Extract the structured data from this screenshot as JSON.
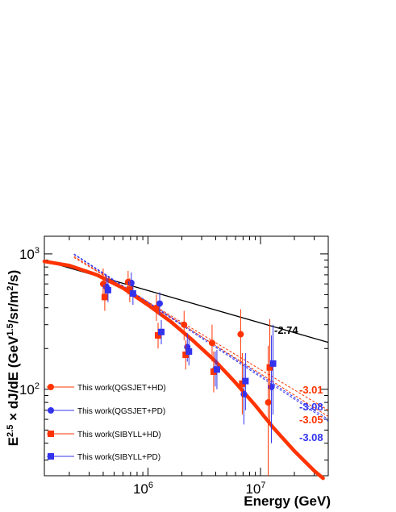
{
  "chart_data": {
    "type": "scatter",
    "title": "",
    "xlabel": "Energy (GeV)",
    "ylabel": "E^{2.5} × dJ/dE (GeV^{1.5}/sr/m^{2}/s)",
    "xscale": "log",
    "yscale": "log",
    "xlim": [
      120000,
      40000000
    ],
    "ylim": [
      23,
      1350
    ],
    "x_tick_labels": [
      "10^6",
      "10^7"
    ],
    "y_tick_labels": [
      "10^2",
      "10^3"
    ],
    "grid": false,
    "legend_placement": "lower-left",
    "series": [
      {
        "name": "This work(QGSJET+HD)",
        "color": "#ff3300",
        "marker": "circle",
        "points": [
          {
            "x": 420000,
            "y": 600,
            "err": [
              470,
              780
            ]
          },
          {
            "x": 700000,
            "y": 620,
            "err": [
              500,
              750
            ]
          },
          {
            "x": 1250000,
            "y": 400,
            "err": [
              320,
              500
            ]
          },
          {
            "x": 2200000,
            "y": 300,
            "err": [
              230,
              380
            ]
          },
          {
            "x": 3900000,
            "y": 220,
            "err": [
              160,
              300
            ]
          },
          {
            "x": 7000000,
            "y": 255,
            "err": [
              160,
              390
            ]
          },
          {
            "x": 12300000,
            "y": 80,
            "err": [
              23,
              210
            ]
          }
        ]
      },
      {
        "name": "This work(QGSJET+PD)",
        "color": "#3333ee",
        "marker": "circle",
        "points": [
          {
            "x": 420000,
            "y": 570,
            "err": [
              460,
              700
            ]
          },
          {
            "x": 700000,
            "y": 610,
            "err": [
              510,
              730
            ]
          },
          {
            "x": 1250000,
            "y": 430,
            "err": [
              350,
              520
            ]
          },
          {
            "x": 2200000,
            "y": 205,
            "err": [
              160,
              260
            ]
          },
          {
            "x": 3900000,
            "y": 140,
            "err": [
              105,
              190
            ]
          },
          {
            "x": 7000000,
            "y": 92,
            "err": [
              55,
              150
            ]
          },
          {
            "x": 12300000,
            "y": 104,
            "err": [
              40,
              250
            ]
          }
        ]
      },
      {
        "name": "This work(SIBYLL+HD)",
        "color": "#ff3300",
        "marker": "square",
        "points": [
          {
            "x": 420000,
            "y": 480,
            "err": [
              380,
              600
            ]
          },
          {
            "x": 700000,
            "y": 545,
            "err": [
              440,
              660
            ]
          },
          {
            "x": 1250000,
            "y": 250,
            "err": [
              200,
              310
            ]
          },
          {
            "x": 2200000,
            "y": 180,
            "err": [
              140,
              230
            ]
          },
          {
            "x": 3900000,
            "y": 135,
            "err": [
              95,
              190
            ]
          },
          {
            "x": 7000000,
            "y": 110,
            "err": [
              65,
              185
            ]
          },
          {
            "x": 12300000,
            "y": 145,
            "err": [
              55,
              330
            ]
          }
        ]
      },
      {
        "name": "This work(SIBYLL+PD)",
        "color": "#3333ee",
        "marker": "square",
        "points": [
          {
            "x": 420000,
            "y": 540,
            "err": [
              440,
              660
            ]
          },
          {
            "x": 700000,
            "y": 510,
            "err": [
              420,
              620
            ]
          },
          {
            "x": 1250000,
            "y": 265,
            "err": [
              215,
              325
            ]
          },
          {
            "x": 2200000,
            "y": 190,
            "err": [
              150,
              240
            ]
          },
          {
            "x": 3900000,
            "y": 140,
            "err": [
              100,
              195
            ]
          },
          {
            "x": 7000000,
            "y": 115,
            "err": [
              70,
              185
            ]
          },
          {
            "x": 12300000,
            "y": 155,
            "err": [
              65,
              300
            ]
          }
        ]
      }
    ],
    "fit_lines": [
      {
        "label": "-2.74",
        "color": "#000000",
        "dashed": false,
        "x": [
          120000,
          40000000
        ],
        "y": [
          890,
          222
        ]
      },
      {
        "label": "-3.01",
        "color": "#ff3300",
        "dashed": true,
        "x": [
          220000,
          40000000
        ],
        "y": [
          940,
          70
        ]
      },
      {
        "label": "-3.08",
        "color": "#3333ee",
        "dashed": true,
        "x": [
          220000,
          40000000
        ],
        "y": [
          1000,
          60
        ]
      },
      {
        "label": "-3.05",
        "color": "#ff3300",
        "dashed": true,
        "x": [
          220000,
          40000000
        ],
        "y": [
          960,
          63
        ]
      },
      {
        "label": "-3.08",
        "color": "#3333ee",
        "dashed": true,
        "x": [
          220000,
          40000000
        ],
        "y": [
          990,
          58
        ]
      }
    ],
    "model_curve": {
      "color": "#ff3300",
      "x": [
        120000,
        200000,
        350000,
        600000,
        1000000,
        1600000,
        2500000,
        4000000,
        6000000,
        9000000,
        13000000,
        20000000,
        30000000,
        36000000
      ],
      "y": [
        880,
        820,
        700,
        560,
        420,
        315,
        230,
        160,
        112,
        76,
        52,
        35,
        25,
        22
      ]
    }
  },
  "annotations": [
    {
      "text": "-2.74",
      "color": "#000000"
    },
    {
      "text": "-3.01",
      "color": "#ff3300"
    },
    {
      "text": "-3.08",
      "color": "#3333ee"
    },
    {
      "text": "-3.05",
      "color": "#ff3300"
    },
    {
      "text": "-3.08",
      "color": "#3333ee"
    }
  ]
}
